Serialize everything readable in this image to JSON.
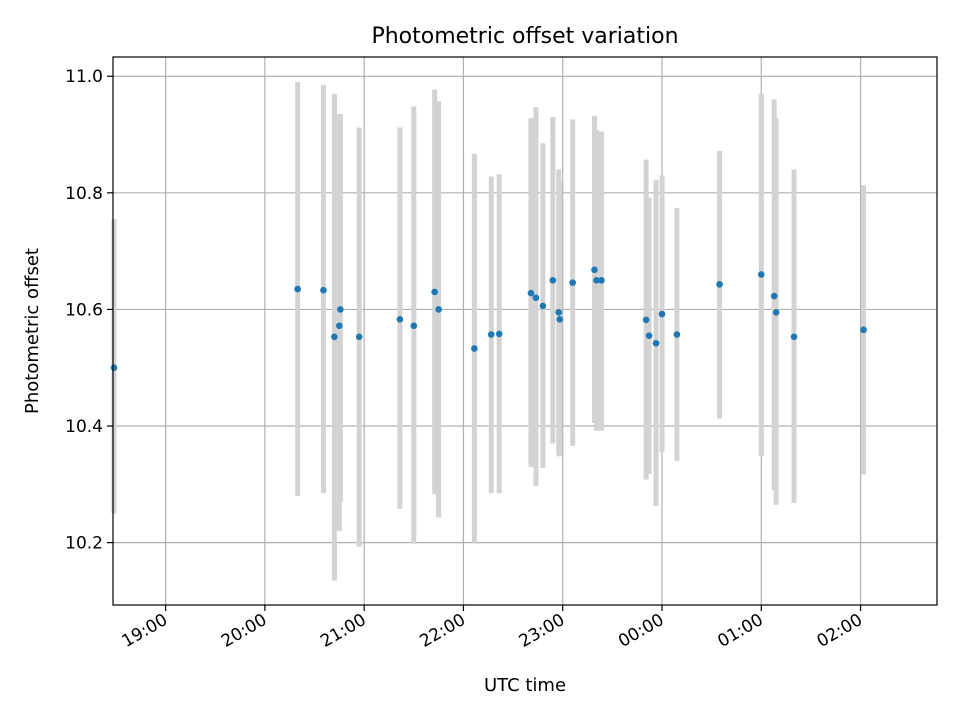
{
  "chart_data": {
    "type": "scatter",
    "title": "Photometric offset variation",
    "xlabel": "UTC time",
    "ylabel": "Photometric offset",
    "x_unit": "hours since 18:00 UTC",
    "xlim": [
      0.47,
      8.77
    ],
    "ylim": [
      10.093,
      11.033
    ],
    "grid": true,
    "x_ticks": [
      {
        "value": 1,
        "label": "19:00"
      },
      {
        "value": 2,
        "label": "20:00"
      },
      {
        "value": 3,
        "label": "21:00"
      },
      {
        "value": 4,
        "label": "22:00"
      },
      {
        "value": 5,
        "label": "23:00"
      },
      {
        "value": 6,
        "label": "00:00"
      },
      {
        "value": 7,
        "label": "01:00"
      },
      {
        "value": 8,
        "label": "02:00"
      }
    ],
    "y_ticks": [
      {
        "value": 10.2,
        "label": "10.2"
      },
      {
        "value": 10.4,
        "label": "10.4"
      },
      {
        "value": 10.6,
        "label": "10.6"
      },
      {
        "value": 10.8,
        "label": "10.8"
      },
      {
        "value": 11.0,
        "label": "11.0"
      }
    ],
    "marker_color": "#1f77b4",
    "errorbar_color": "#d3d3d3",
    "points": [
      {
        "x": 0.48,
        "y": 10.5,
        "low": 10.25,
        "high": 10.755
      },
      {
        "x": 2.33,
        "y": 10.635,
        "low": 10.28,
        "high": 10.99
      },
      {
        "x": 2.59,
        "y": 10.633,
        "low": 10.285,
        "high": 10.985
      },
      {
        "x": 2.7,
        "y": 10.553,
        "low": 10.135,
        "high": 10.97
      },
      {
        "x": 2.75,
        "y": 10.572,
        "low": 10.22,
        "high": 10.935
      },
      {
        "x": 2.76,
        "y": 10.6,
        "low": 10.27,
        "high": 10.935
      },
      {
        "x": 2.95,
        "y": 10.553,
        "low": 10.193,
        "high": 10.912
      },
      {
        "x": 3.36,
        "y": 10.583,
        "low": 10.258,
        "high": 10.912
      },
      {
        "x": 3.5,
        "y": 10.572,
        "low": 10.198,
        "high": 10.948
      },
      {
        "x": 3.71,
        "y": 10.63,
        "low": 10.283,
        "high": 10.977
      },
      {
        "x": 3.75,
        "y": 10.6,
        "low": 10.243,
        "high": 10.957
      },
      {
        "x": 4.11,
        "y": 10.533,
        "low": 10.2,
        "high": 10.867
      },
      {
        "x": 4.28,
        "y": 10.557,
        "low": 10.285,
        "high": 10.828
      },
      {
        "x": 4.36,
        "y": 10.558,
        "low": 10.285,
        "high": 10.832
      },
      {
        "x": 4.68,
        "y": 10.628,
        "low": 10.33,
        "high": 10.928
      },
      {
        "x": 4.73,
        "y": 10.62,
        "low": 10.297,
        "high": 10.947
      },
      {
        "x": 4.8,
        "y": 10.606,
        "low": 10.328,
        "high": 10.885
      },
      {
        "x": 4.9,
        "y": 10.65,
        "low": 10.37,
        "high": 10.93
      },
      {
        "x": 4.96,
        "y": 10.595,
        "low": 10.35,
        "high": 10.84
      },
      {
        "x": 4.97,
        "y": 10.583,
        "low": 10.348,
        "high": 10.818
      },
      {
        "x": 5.1,
        "y": 10.646,
        "low": 10.366,
        "high": 10.926
      },
      {
        "x": 5.32,
        "y": 10.668,
        "low": 10.405,
        "high": 10.932
      },
      {
        "x": 5.34,
        "y": 10.65,
        "low": 10.392,
        "high": 10.908
      },
      {
        "x": 5.39,
        "y": 10.65,
        "low": 10.392,
        "high": 10.905
      },
      {
        "x": 5.84,
        "y": 10.582,
        "low": 10.308,
        "high": 10.857
      },
      {
        "x": 5.87,
        "y": 10.555,
        "low": 10.318,
        "high": 10.792
      },
      {
        "x": 5.94,
        "y": 10.542,
        "low": 10.263,
        "high": 10.822
      },
      {
        "x": 6.0,
        "y": 10.592,
        "low": 10.355,
        "high": 10.83
      },
      {
        "x": 6.15,
        "y": 10.557,
        "low": 10.34,
        "high": 10.774
      },
      {
        "x": 6.58,
        "y": 10.643,
        "low": 10.413,
        "high": 10.872
      },
      {
        "x": 7.0,
        "y": 10.66,
        "low": 10.348,
        "high": 10.97
      },
      {
        "x": 7.13,
        "y": 10.623,
        "low": 10.29,
        "high": 10.96
      },
      {
        "x": 7.15,
        "y": 10.595,
        "low": 10.265,
        "high": 10.928
      },
      {
        "x": 7.33,
        "y": 10.553,
        "low": 10.268,
        "high": 10.84
      },
      {
        "x": 8.03,
        "y": 10.565,
        "low": 10.317,
        "high": 10.813
      }
    ]
  }
}
